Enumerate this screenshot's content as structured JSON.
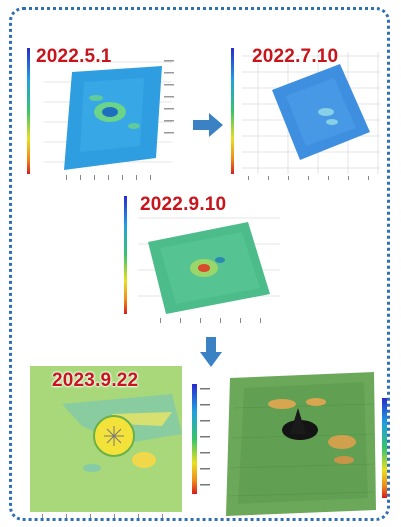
{
  "panels": [
    {
      "id": "p1",
      "date": "2022.5.1"
    },
    {
      "id": "p2",
      "date": "2022.7.10"
    },
    {
      "id": "p3",
      "date": "2022.9.10"
    },
    {
      "id": "p4",
      "date": "2023.9.22"
    },
    {
      "id": "p5",
      "date": ""
    }
  ],
  "colors": {
    "frame": "#2f6fb3",
    "arrow": "#3b82c4",
    "date_text": "#c8141b"
  }
}
